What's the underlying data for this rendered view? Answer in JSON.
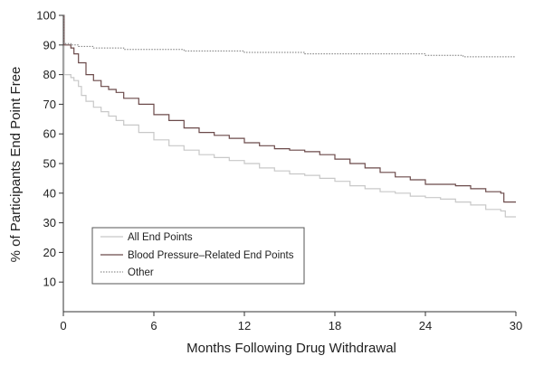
{
  "chart_data": {
    "type": "line",
    "title": "",
    "xlabel": "Months Following Drug Withdrawal",
    "ylabel": "% of Participants End Point Free",
    "xlim": [
      0,
      30
    ],
    "ylim": [
      0,
      100
    ],
    "x_ticks": [
      "0",
      "6",
      "12",
      "18",
      "24",
      "30"
    ],
    "y_ticks": [
      "10",
      "20",
      "30",
      "40",
      "50",
      "60",
      "70",
      "80",
      "90",
      "100"
    ],
    "grid": false,
    "legend_position": "bottom-left",
    "series": [
      {
        "name": "All End Points",
        "color": "#c8c8c8",
        "style": "solid",
        "x": [
          0,
          0.05,
          0.5,
          0.7,
          1,
          1.2,
          1.5,
          2,
          2.5,
          3,
          3.5,
          4,
          5,
          6,
          7,
          8,
          9,
          10,
          11,
          12,
          13,
          14,
          15,
          16,
          17,
          18,
          19,
          20,
          21,
          22,
          23,
          24,
          25,
          26,
          27,
          28,
          29,
          29.3,
          29.5,
          30
        ],
        "values": [
          100,
          80,
          79,
          78,
          76,
          73,
          71,
          69,
          67.5,
          66,
          64.5,
          63,
          60.5,
          58,
          56,
          54.5,
          53,
          52,
          51,
          50,
          48.5,
          47.5,
          46.5,
          46,
          45,
          44,
          42.5,
          41.5,
          40.5,
          40,
          39,
          38.5,
          38,
          37,
          36,
          34.5,
          34,
          32,
          32,
          32
        ]
      },
      {
        "name": "Blood Pressure–Related End Points",
        "color": "#6b4a4a",
        "style": "solid",
        "x": [
          0,
          0.05,
          0.5,
          0.7,
          1,
          1.5,
          2,
          2.5,
          3,
          3.5,
          4,
          5,
          6,
          7,
          8,
          9,
          10,
          11,
          12,
          13,
          14,
          15,
          16,
          17,
          18,
          19,
          20,
          21,
          22,
          23,
          24,
          25,
          26,
          27,
          28,
          29,
          29.2,
          29.5,
          30
        ],
        "values": [
          100,
          90,
          89,
          87,
          84,
          80,
          78,
          76,
          75,
          74,
          72,
          70,
          66.5,
          64.5,
          62,
          60.5,
          59.5,
          58.5,
          57,
          56,
          55,
          54.5,
          54,
          53,
          51.5,
          50,
          48.5,
          47,
          45.5,
          44.5,
          43,
          43,
          42.5,
          41.5,
          40.5,
          40,
          37,
          37,
          37
        ]
      },
      {
        "name": "Other",
        "color": "#777777",
        "style": "dotted",
        "x": [
          0,
          0.05,
          0.5,
          1,
          2,
          4,
          6,
          8,
          10,
          12,
          14,
          16,
          18,
          20,
          22,
          24,
          25,
          26,
          26.5,
          28,
          29,
          30
        ],
        "values": [
          100,
          90.5,
          90,
          89.5,
          89,
          88.5,
          88.5,
          88,
          88,
          87.5,
          87.5,
          87,
          87,
          87,
          87,
          86.5,
          86.5,
          86.5,
          86,
          86,
          86,
          86
        ]
      }
    ]
  }
}
